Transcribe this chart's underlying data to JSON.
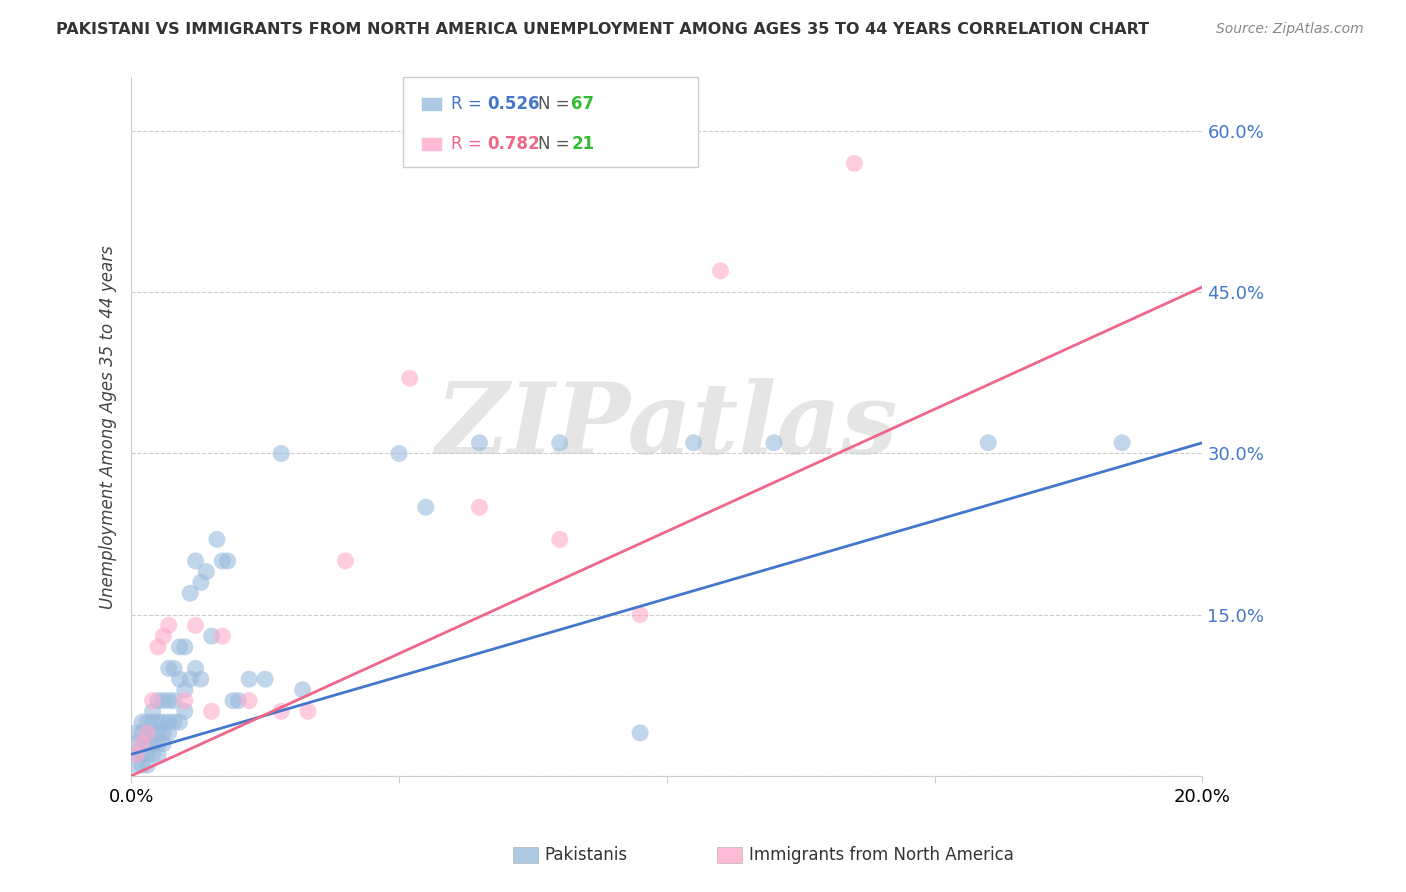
{
  "title": "PAKISTANI VS IMMIGRANTS FROM NORTH AMERICA UNEMPLOYMENT AMONG AGES 35 TO 44 YEARS CORRELATION CHART",
  "source": "Source: ZipAtlas.com",
  "ylabel": "Unemployment Among Ages 35 to 44 years",
  "xlim": [
    0.0,
    0.2
  ],
  "ylim": [
    0.0,
    0.65
  ],
  "yticks": [
    0.0,
    0.15,
    0.3,
    0.45,
    0.6
  ],
  "ytick_labels": [
    "",
    "15.0%",
    "30.0%",
    "45.0%",
    "60.0%"
  ],
  "xticks": [
    0.0,
    0.05,
    0.1,
    0.15,
    0.2
  ],
  "xtick_labels": [
    "0.0%",
    "",
    "",
    "",
    "20.0%"
  ],
  "blue_color": "#99BBDD",
  "pink_color": "#FFAACC",
  "blue_line_color": "#4477CC",
  "pink_line_color": "#EE6688",
  "blue_label": "Pakistanis",
  "pink_label": "Immigrants from North America",
  "blue_R": "0.526",
  "blue_N": "67",
  "pink_R": "0.782",
  "pink_N": "21",
  "blue_x": [
    0.001,
    0.001,
    0.001,
    0.001,
    0.002,
    0.002,
    0.002,
    0.002,
    0.002,
    0.003,
    0.003,
    0.003,
    0.003,
    0.003,
    0.004,
    0.004,
    0.004,
    0.004,
    0.004,
    0.005,
    0.005,
    0.005,
    0.005,
    0.005,
    0.006,
    0.006,
    0.006,
    0.006,
    0.007,
    0.007,
    0.007,
    0.007,
    0.008,
    0.008,
    0.008,
    0.009,
    0.009,
    0.009,
    0.01,
    0.01,
    0.01,
    0.011,
    0.011,
    0.012,
    0.012,
    0.013,
    0.013,
    0.014,
    0.015,
    0.016,
    0.017,
    0.018,
    0.019,
    0.02,
    0.022,
    0.025,
    0.028,
    0.032,
    0.05,
    0.055,
    0.065,
    0.08,
    0.095,
    0.105,
    0.12,
    0.16,
    0.185
  ],
  "blue_y": [
    0.01,
    0.02,
    0.03,
    0.04,
    0.01,
    0.02,
    0.03,
    0.04,
    0.05,
    0.01,
    0.02,
    0.03,
    0.04,
    0.05,
    0.02,
    0.03,
    0.04,
    0.05,
    0.06,
    0.02,
    0.03,
    0.04,
    0.05,
    0.07,
    0.03,
    0.04,
    0.05,
    0.07,
    0.04,
    0.05,
    0.07,
    0.1,
    0.05,
    0.07,
    0.1,
    0.05,
    0.09,
    0.12,
    0.06,
    0.08,
    0.12,
    0.09,
    0.17,
    0.1,
    0.2,
    0.09,
    0.18,
    0.19,
    0.13,
    0.22,
    0.2,
    0.2,
    0.07,
    0.07,
    0.09,
    0.09,
    0.3,
    0.08,
    0.3,
    0.25,
    0.31,
    0.31,
    0.04,
    0.31,
    0.31,
    0.31,
    0.31
  ],
  "pink_x": [
    0.001,
    0.002,
    0.003,
    0.004,
    0.005,
    0.006,
    0.007,
    0.01,
    0.012,
    0.015,
    0.017,
    0.022,
    0.028,
    0.033,
    0.04,
    0.052,
    0.065,
    0.08,
    0.095,
    0.11,
    0.135
  ],
  "pink_y": [
    0.02,
    0.03,
    0.04,
    0.07,
    0.12,
    0.13,
    0.14,
    0.07,
    0.14,
    0.06,
    0.13,
    0.07,
    0.06,
    0.06,
    0.2,
    0.37,
    0.25,
    0.22,
    0.15,
    0.47,
    0.57
  ],
  "blue_trend_x": [
    0.0,
    0.2
  ],
  "blue_trend_y": [
    0.02,
    0.31
  ],
  "pink_trend_x": [
    0.0,
    0.2
  ],
  "pink_trend_y": [
    0.0,
    0.455
  ],
  "watermark": "ZIPatlas",
  "background_color": "#FFFFFF",
  "grid_color": "#CCCCCC",
  "title_fontsize": 11.5,
  "axis_fontsize": 13,
  "ylabel_fontsize": 12
}
